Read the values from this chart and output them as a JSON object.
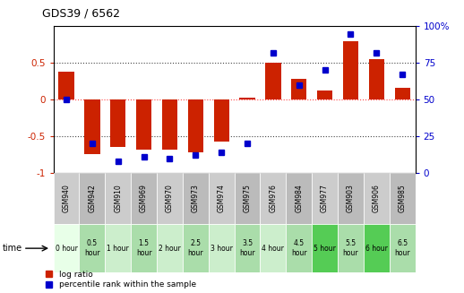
{
  "title": "GDS39 / 6562",
  "samples": [
    "GSM940",
    "GSM942",
    "GSM910",
    "GSM969",
    "GSM970",
    "GSM973",
    "GSM974",
    "GSM975",
    "GSM976",
    "GSM984",
    "GSM977",
    "GSM903",
    "GSM906",
    "GSM985"
  ],
  "time_labels": [
    "0 hour",
    "0.5\nhour",
    "1 hour",
    "1.5\nhour",
    "2 hour",
    "2.5\nhour",
    "3 hour",
    "3.5\nhour",
    "4 hour",
    "4.5\nhour",
    "5 hour",
    "5.5\nhour",
    "6 hour",
    "6.5\nhour"
  ],
  "log_ratio": [
    0.38,
    -0.75,
    -0.65,
    -0.68,
    -0.68,
    -0.72,
    -0.57,
    0.03,
    0.5,
    0.28,
    0.13,
    0.8,
    0.55,
    0.16
  ],
  "percentile": [
    50,
    20,
    8,
    11,
    10,
    12,
    14,
    20,
    82,
    60,
    70,
    95,
    82,
    67
  ],
  "yticks_left": [
    -1,
    -0.5,
    0,
    0.5
  ],
  "ytick_labels_left": [
    "-1",
    "-0.5",
    "0",
    "0.5"
  ],
  "yticks_right": [
    0,
    25,
    50,
    75,
    100
  ],
  "ytick_labels_right": [
    "0",
    "25",
    "50",
    "75",
    "100%"
  ],
  "bar_color": "#cc2200",
  "dot_color": "#0000cc",
  "bg_color": "#ffffff",
  "zero_line_color": "#ff4444",
  "sample_row_colors": [
    "#cccccc",
    "#bbbbbb"
  ],
  "time_row_colors": [
    "#e8ffe8",
    "#aaddaa",
    "#cceecc",
    "#aaddaa",
    "#cceecc",
    "#aaddaa",
    "#cceecc",
    "#aaddaa",
    "#cceecc",
    "#aaddaa",
    "#55cc55",
    "#aaddaa",
    "#55cc55",
    "#aaddaa"
  ]
}
